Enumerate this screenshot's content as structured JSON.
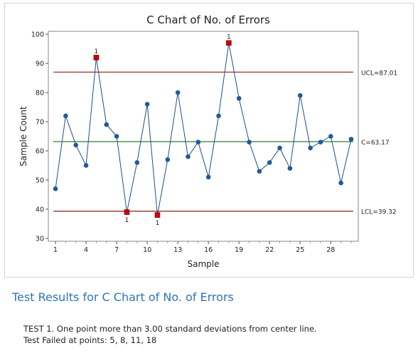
{
  "chart_data": {
    "type": "line",
    "title": "C Chart of No. of Errors",
    "xlabel": "Sample",
    "ylabel": "Sample Count",
    "x": [
      1,
      2,
      3,
      4,
      5,
      6,
      7,
      8,
      9,
      10,
      11,
      12,
      13,
      14,
      15,
      16,
      17,
      18,
      19,
      20,
      21,
      22,
      23,
      24,
      25,
      26,
      27,
      28,
      29,
      30
    ],
    "values": [
      47,
      72,
      62,
      55,
      92,
      69,
      65,
      39,
      56,
      76,
      38,
      57,
      80,
      58,
      63,
      51,
      72,
      97,
      78,
      63,
      53,
      56,
      61,
      54,
      79,
      61,
      63,
      65,
      49,
      64
    ],
    "ylim": [
      29,
      101
    ],
    "yticks": [
      30,
      40,
      50,
      60,
      70,
      80,
      90,
      100
    ],
    "xticks": [
      1,
      4,
      7,
      10,
      13,
      16,
      19,
      22,
      25,
      28
    ],
    "xtick_labels": [
      "1",
      "4",
      "7",
      "10",
      "13",
      "16",
      "19",
      "22",
      "25",
      "28"
    ],
    "ytick_labels": [
      "30",
      "40",
      "50",
      "60",
      "70",
      "80",
      "90",
      "100"
    ],
    "control_lines": [
      {
        "value": 87.01,
        "label": "UCL=87.01",
        "color": "#8b1a1a"
      },
      {
        "value": 63.17,
        "label": "C=63.17",
        "color": "#2e7d32"
      },
      {
        "value": 39.32,
        "label": "LCL=39.32",
        "color": "#8b1a1a"
      }
    ],
    "failed_points": [
      5,
      8,
      11,
      18
    ],
    "failed_marker_label": "1",
    "line_color": "#1f4e8c",
    "point_color": "#1f5a9e",
    "failed_color": "#cc0000",
    "grid": false
  },
  "results": {
    "title": "Test Results for C Chart of No. of Errors",
    "line1": "TEST 1. One point more than 3.00 standard deviations from center line.",
    "line2": "Test Failed at points:  5, 8, 11, 18"
  }
}
